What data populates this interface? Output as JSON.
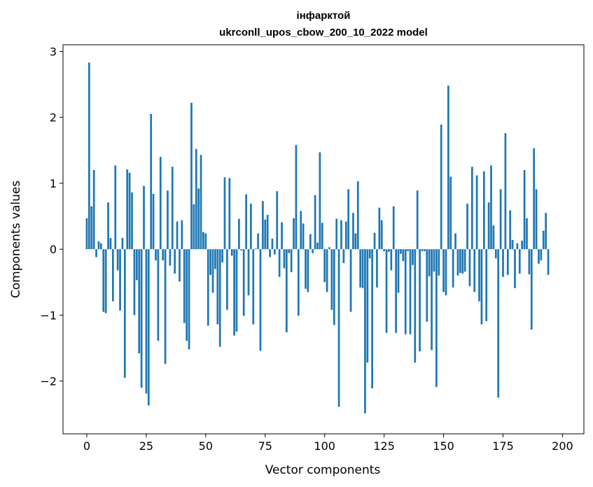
{
  "chart_data": {
    "type": "bar",
    "title_line1": "інфарктой",
    "title_line2": "ukrconll_upos_cbow_200_10_2022 model",
    "xlabel": "Vector components",
    "ylabel": "Components values",
    "xlim": [
      -10,
      209
    ],
    "ylim": [
      -2.8,
      3.1
    ],
    "xticks": [
      0,
      25,
      50,
      75,
      100,
      125,
      150,
      175,
      200
    ],
    "yticks": [
      -2,
      -1,
      0,
      1,
      2,
      3
    ],
    "xtick_labels": [
      "0",
      "25",
      "50",
      "75",
      "100",
      "125",
      "150",
      "175",
      "200"
    ],
    "ytick_labels": [
      "−2",
      "−1",
      "0",
      "1",
      "2",
      "3"
    ],
    "bar_color": "#1f77b4",
    "values": [
      0.47,
      2.83,
      0.65,
      1.2,
      -0.12,
      0.12,
      0.09,
      -0.95,
      -0.97,
      0.71,
      0.17,
      -0.79,
      1.27,
      -0.32,
      -0.93,
      0.17,
      -1.95,
      1.21,
      1.16,
      0.86,
      -1.0,
      -0.47,
      -1.58,
      -2.1,
      0.96,
      -2.19,
      -2.37,
      2.05,
      0.84,
      -0.17,
      -1.39,
      1.4,
      -0.17,
      -1.74,
      0.89,
      -0.25,
      1.25,
      -0.37,
      0.42,
      -0.49,
      0.44,
      -1.12,
      -1.39,
      -1.52,
      2.22,
      0.68,
      1.52,
      0.92,
      1.43,
      0.26,
      0.24,
      -1.16,
      -0.39,
      -0.66,
      -0.3,
      -1.14,
      -1.48,
      -0.2,
      1.09,
      -0.92,
      1.08,
      -0.1,
      -1.31,
      -1.25,
      0.46,
      -0.02,
      -1.01,
      0.83,
      -0.7,
      0.69,
      -1.14,
      0.01,
      0.24,
      -1.54,
      0.73,
      0.45,
      0.52,
      -0.12,
      0.16,
      -0.08,
      0.88,
      -0.42,
      0.41,
      -0.29,
      -1.26,
      -0.06,
      -0.35,
      0.47,
      1.58,
      -1.01,
      0.58,
      0.39,
      -0.6,
      -0.65,
      0.23,
      -0.06,
      0.82,
      0.1,
      1.47,
      0.4,
      -0.5,
      -0.65,
      0.03,
      -0.92,
      -1.15,
      0.46,
      -2.39,
      0.44,
      -0.21,
      0.42,
      0.91,
      -0.95,
      0.55,
      0.24,
      1.03,
      -0.58,
      -0.59,
      -2.49,
      -1.72,
      -0.14,
      -2.11,
      0.25,
      -0.58,
      0.63,
      0.44,
      -0.03,
      -1.27,
      -0.04,
      -0.32,
      0.65,
      -1.27,
      -0.66,
      -0.07,
      -0.18,
      -1.29,
      -0.03,
      -1.29,
      -0.24,
      -1.72,
      0.89,
      -1.55,
      -0.03,
      -0.03,
      -1.1,
      -0.41,
      -1.53,
      -0.34,
      -2.09,
      -0.4,
      1.89,
      -0.65,
      -0.7,
      2.48,
      1.1,
      -0.58,
      0.24,
      -0.4,
      -0.36,
      -0.37,
      -0.34,
      0.69,
      -0.56,
      1.25,
      -0.65,
      1.12,
      -0.79,
      -1.14,
      1.18,
      -1.09,
      0.71,
      1.27,
      0.36,
      -0.14,
      -2.25,
      0.91,
      -0.42,
      1.76,
      -0.39,
      0.59,
      0.14,
      -0.59,
      0.09,
      -0.37,
      0.13,
      1.2,
      0.47,
      -0.38,
      -1.22,
      1.53,
      0.91,
      -0.22,
      -0.17,
      0.28,
      0.55,
      -0.39
    ]
  }
}
